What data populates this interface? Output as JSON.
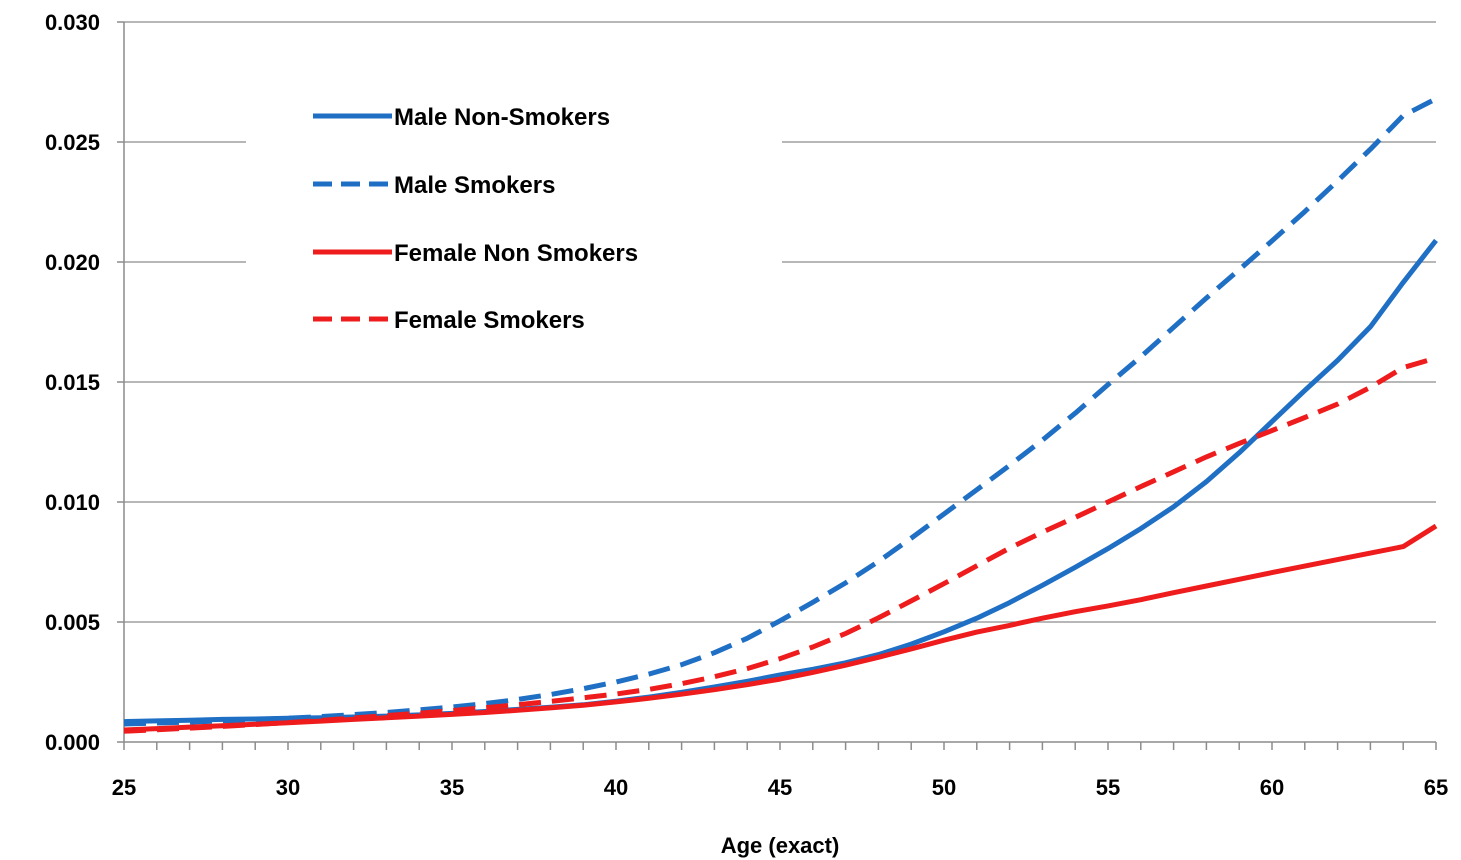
{
  "chart_data": {
    "type": "line",
    "title": "",
    "xlabel": "Age (exact)",
    "ylabel": "",
    "xlim": [
      25,
      65
    ],
    "ylim": [
      0,
      0.03
    ],
    "x_ticks": [
      "25",
      "30",
      "35",
      "40",
      "45",
      "50",
      "55",
      "60",
      "65"
    ],
    "y_ticks": [
      "0.000",
      "0.005",
      "0.010",
      "0.015",
      "0.020",
      "0.025",
      "0.030"
    ],
    "grid": "horizontal",
    "legend_position": "top-left",
    "x": [
      25,
      26,
      27,
      28,
      29,
      30,
      31,
      32,
      33,
      34,
      35,
      36,
      37,
      38,
      39,
      40,
      41,
      42,
      43,
      44,
      45,
      46,
      47,
      48,
      49,
      50,
      51,
      52,
      53,
      54,
      55,
      56,
      57,
      58,
      59,
      60,
      61,
      62,
      63,
      64,
      65
    ],
    "series": [
      {
        "name": "Male Non-Smokers",
        "color": "#1F6FC5",
        "dash": "solid",
        "values": [
          0.00085,
          0.00088,
          0.00091,
          0.00094,
          0.00096,
          0.00099,
          0.00101,
          0.00104,
          0.00108,
          0.00113,
          0.00119,
          0.00127,
          0.00136,
          0.00145,
          0.00155,
          0.0017,
          0.00187,
          0.00207,
          0.00229,
          0.00253,
          0.00279,
          0.00303,
          0.0033,
          0.00364,
          0.00408,
          0.00459,
          0.00516,
          0.00581,
          0.00653,
          0.00728,
          0.00806,
          0.00889,
          0.0098,
          0.01085,
          0.01205,
          0.01335,
          0.01465,
          0.0159,
          0.0173,
          0.01915,
          0.0209
        ]
      },
      {
        "name": "Male Smokers",
        "color": "#1F6FC5",
        "dash": "dashed",
        "values": [
          0.00075,
          0.00079,
          0.00083,
          0.00088,
          0.00093,
          0.00099,
          0.00106,
          0.00114,
          0.00123,
          0.00134,
          0.00146,
          0.0016,
          0.00177,
          0.00198,
          0.00222,
          0.0025,
          0.00283,
          0.00322,
          0.00372,
          0.00432,
          0.00505,
          0.00582,
          0.00663,
          0.00752,
          0.00849,
          0.0095,
          0.01051,
          0.01153,
          0.01258,
          0.0137,
          0.01489,
          0.01605,
          0.01728,
          0.0185,
          0.01968,
          0.02088,
          0.0221,
          0.02338,
          0.0247,
          0.0261,
          0.0268
        ]
      },
      {
        "name": "Female Non Smokers",
        "color": "#EE1C1C",
        "dash": "solid",
        "values": [
          0.0005,
          0.00056,
          0.00062,
          0.00068,
          0.00074,
          0.0008,
          0.00087,
          0.00094,
          0.00101,
          0.00108,
          0.00115,
          0.00123,
          0.00132,
          0.00142,
          0.00153,
          0.00167,
          0.00182,
          0.00199,
          0.00218,
          0.00239,
          0.00262,
          0.0029,
          0.0032,
          0.00353,
          0.00388,
          0.00424,
          0.00458,
          0.00486,
          0.00516,
          0.00543,
          0.00567,
          0.00593,
          0.00622,
          0.0065,
          0.00678,
          0.00706,
          0.00733,
          0.0076,
          0.00787,
          0.00814,
          0.009
        ]
      },
      {
        "name": "Female Smokers",
        "color": "#EE1C1C",
        "dash": "dashed",
        "values": [
          0.00045,
          0.00051,
          0.00058,
          0.00065,
          0.00073,
          0.00081,
          0.0009,
          0.001,
          0.0011,
          0.0012,
          0.00131,
          0.00143,
          0.00155,
          0.00169,
          0.00184,
          0.002,
          0.00219,
          0.00243,
          0.00272,
          0.00306,
          0.00347,
          0.00396,
          0.00452,
          0.00517,
          0.00588,
          0.0066,
          0.00734,
          0.00808,
          0.00874,
          0.00936,
          0.01,
          0.01064,
          0.01126,
          0.01188,
          0.01244,
          0.01298,
          0.01352,
          0.01408,
          0.01478,
          0.0156,
          0.016
        ]
      }
    ]
  }
}
